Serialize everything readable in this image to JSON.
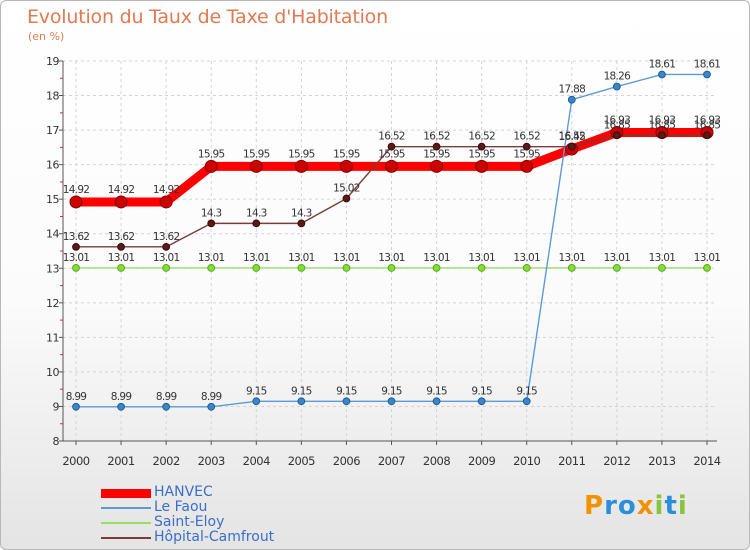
{
  "title": "Evolution du Taux de Taxe d'Habitation",
  "subtitle": "(en %)",
  "logo": {
    "text": "Proxiti"
  },
  "chart_data": {
    "type": "line",
    "x": [
      "2000",
      "2001",
      "2002",
      "2003",
      "2004",
      "2005",
      "2006",
      "2007",
      "2008",
      "2009",
      "2010",
      "2011",
      "2012",
      "2013",
      "2014"
    ],
    "ylim": [
      8,
      19
    ],
    "yticks": [
      8,
      9,
      10,
      11,
      12,
      13,
      14,
      15,
      16,
      17,
      18,
      19
    ],
    "grid": true,
    "legend_position": "bottom-left",
    "series": [
      {
        "name": "HANVEC",
        "color": "#ff0000",
        "values": [
          14.92,
          14.92,
          14.92,
          15.95,
          15.95,
          15.95,
          15.95,
          15.95,
          15.95,
          15.95,
          15.95,
          16.45,
          16.93,
          16.93,
          16.93
        ],
        "labels": [
          "14.92",
          "14.92",
          "14.92",
          "15.95",
          "15.95",
          "15.95",
          "15.95",
          "15.95",
          "15.95",
          "15.95",
          "15.95",
          "16.45",
          "16.93",
          "16.93",
          "16.93"
        ]
      },
      {
        "name": "Le Faou",
        "color": "#5b9bd5",
        "values": [
          8.99,
          8.99,
          8.99,
          8.99,
          9.15,
          9.15,
          9.15,
          9.15,
          9.15,
          9.15,
          9.15,
          17.88,
          18.26,
          18.61,
          18.61
        ],
        "labels": [
          "8.99",
          "8.99",
          "8.99",
          "8.99",
          "9.15",
          "9.15",
          "9.15",
          "9.15",
          "9.15",
          "9.15",
          "9.15",
          "17.88",
          "18.26",
          "18.61",
          "18.61"
        ]
      },
      {
        "name": "Saint-Eloy",
        "color": "#99dd66",
        "values": [
          13.01,
          13.01,
          13.01,
          13.01,
          13.01,
          13.01,
          13.01,
          13.01,
          13.01,
          13.01,
          13.01,
          13.01,
          13.01,
          13.01,
          13.01
        ],
        "labels": [
          "13.01",
          "13.01",
          "13.01",
          "13.01",
          "13.01",
          "13.01",
          "13.01",
          "13.01",
          "13.01",
          "13.01",
          "13.01",
          "13.01",
          "13.01",
          "13.01",
          "13.01"
        ]
      },
      {
        "name": "Hôpital-Camfrout",
        "color": "#7a3b3b",
        "values": [
          13.62,
          13.62,
          13.62,
          14.3,
          14.3,
          14.3,
          15.02,
          16.52,
          16.52,
          16.52,
          16.52,
          16.52,
          16.85,
          16.85,
          16.85
        ],
        "labels": [
          "13.62",
          "13.62",
          "13.62",
          "14.3",
          "14.3",
          "14.3",
          "15.02",
          "16.52",
          "16.52",
          "16.52",
          "16.52",
          "16.52",
          "16.85",
          "16.85",
          "16.85"
        ]
      }
    ]
  }
}
